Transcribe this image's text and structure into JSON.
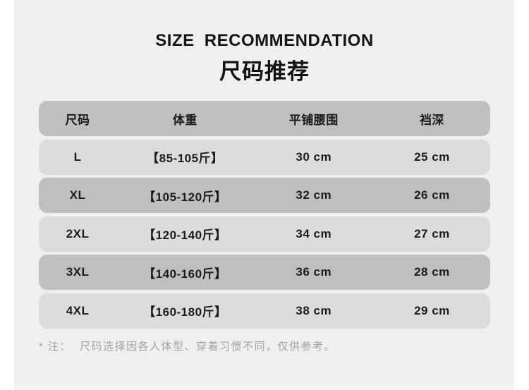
{
  "page": {
    "title_en": "SIZE RECOMMENDATION",
    "title_zh": "尺码推荐"
  },
  "table": {
    "columns": [
      "尺码",
      "体重",
      "平铺腰围",
      "裆深"
    ],
    "rows": [
      [
        "L",
        "【85-105斤】",
        "30 cm",
        "25 cm"
      ],
      [
        "XL",
        "【105-120斤】",
        "32 cm",
        "26 cm"
      ],
      [
        "2XL",
        "【120-140斤】",
        "34 cm",
        "27 cm"
      ],
      [
        "3XL",
        "【140-160斤】",
        "36 cm",
        "28 cm"
      ],
      [
        "4XL",
        "【160-180斤】",
        "38 cm",
        "29 cm"
      ]
    ]
  },
  "note": {
    "label": "* 注：",
    "text": "尺码选择因各人体型、穿着习惯不同，仅供参考。"
  },
  "colors": {
    "card_background": "#efefee",
    "header_row": "#bfbfbf",
    "row_light": "#dcdcdc",
    "row_dark": "#bfbfbf",
    "text": "#1c1c1c",
    "note_text": "#a2a2a2"
  }
}
